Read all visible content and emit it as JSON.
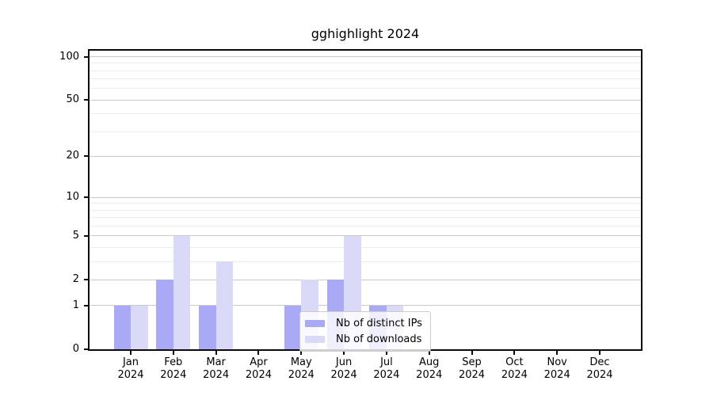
{
  "title": "gghighlight 2024",
  "chart_data": {
    "type": "bar",
    "title": "gghighlight 2024",
    "x_tick_labels_line1": [
      "Jan",
      "Feb",
      "Mar",
      "Apr",
      "May",
      "Jun",
      "Jul",
      "Aug",
      "Sep",
      "Oct",
      "Nov",
      "Dec"
    ],
    "x_tick_labels_line2": "2024",
    "categories": [
      "Jan 2024",
      "Feb 2024",
      "Mar 2024",
      "Apr 2024",
      "May 2024",
      "Jun 2024",
      "Jul 2024",
      "Aug 2024",
      "Sep 2024",
      "Oct 2024",
      "Nov 2024",
      "Dec 2024"
    ],
    "series": [
      {
        "name": "Nb of distinct IPs",
        "color": "#a9a9f5",
        "values": [
          1,
          2,
          1,
          0,
          1,
          2,
          1,
          0,
          0,
          0,
          0,
          0
        ]
      },
      {
        "name": "Nb of downloads",
        "color": "#dadaf8",
        "values": [
          1,
          5,
          3,
          0,
          2,
          5,
          1,
          0,
          0,
          0,
          0,
          0
        ]
      }
    ],
    "yscale": "log1p",
    "ylim": [
      0,
      110
    ],
    "y_major_ticks": [
      0,
      1,
      2,
      5,
      10,
      20,
      50,
      100
    ],
    "y_minor_ticks": [
      3,
      4,
      6,
      7,
      8,
      9,
      30,
      40,
      60,
      70,
      80,
      90
    ],
    "grid": true,
    "legend_position": "lower center"
  },
  "legend": {
    "items": [
      {
        "label": "Nb of distinct IPs",
        "color": "#a9a9f5"
      },
      {
        "label": "Nb of downloads",
        "color": "#dadaf8"
      }
    ]
  },
  "colors": {
    "major_grid": "#c9c9c9",
    "minor_grid": "#ececec",
    "axis": "#0a0a0a",
    "legend_border": "#cccccc"
  }
}
